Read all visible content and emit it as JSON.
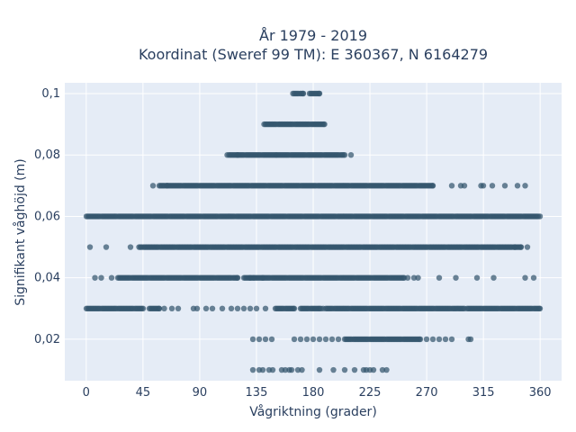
{
  "chart_data": {
    "type": "scatter",
    "title_line1": "År 1979 - 2019",
    "title_line2": "Koordinat (Sweref 99 TM): E 360367, N 6164279",
    "xlabel": "Vågriktning (grader)",
    "ylabel": "Signifikant våghöjd (m)",
    "xlim": [
      -17,
      377
    ],
    "ylim": [
      0.0065,
      0.1035
    ],
    "xticks": [
      0,
      45,
      90,
      135,
      180,
      225,
      270,
      315,
      360
    ],
    "xtick_labels": [
      "0",
      "45",
      "90",
      "135",
      "180",
      "225",
      "270",
      "315",
      "360"
    ],
    "yticks": [
      0.02,
      0.04,
      0.06,
      0.08,
      0.1
    ],
    "ytick_labels": [
      "0,02",
      "0,04",
      "0,06",
      "0,08",
      "0,1"
    ],
    "grid": true,
    "background": "#e5ecf6",
    "grid_color": "#ffffff",
    "marker_color": "#34566e",
    "series": [
      {
        "rows": [
          {
            "y": 0.1,
            "dense": [
              [
                164,
                172
              ],
              [
                177,
                185
              ]
            ],
            "points": []
          },
          {
            "y": 0.09,
            "dense": [
              [
                141,
                189
              ]
            ],
            "points": []
          },
          {
            "y": 0.08,
            "dense": [
              [
                112,
                151
              ],
              [
                151,
                205
              ]
            ],
            "points": [
              120,
              210
            ]
          },
          {
            "y": 0.07,
            "dense": [
              [
                58,
                275
              ]
            ],
            "points": [
              53,
              64,
              290,
              297,
              300,
              313,
              315,
              322,
              332,
              342,
              348
            ]
          },
          {
            "y": 0.06,
            "dense": [
              [
                0,
                360
              ]
            ],
            "points": []
          },
          {
            "y": 0.05,
            "dense": [
              [
                42,
                345
              ]
            ],
            "points": [
              3,
              16,
              35,
              340,
              350
            ]
          },
          {
            "y": 0.04,
            "dense": [
              [
                25,
                120
              ],
              [
                125,
                252
              ]
            ],
            "points": [
              7,
              12,
              20,
              130,
              133,
              140,
              255,
              260,
              263,
              280,
              293,
              310,
              323,
              348,
              355
            ]
          },
          {
            "y": 0.03,
            "dense": [
              [
                0,
                45
              ],
              [
                50,
                58
              ],
              [
                150,
                165
              ],
              [
                170,
                185
              ],
              [
                190,
                300
              ],
              [
                303,
                360
              ]
            ],
            "points": [
              62,
              68,
              73,
              85,
              88,
              95,
              100,
              108,
              115,
              120,
              125,
              130,
              135,
              142,
              186,
              188,
              302
            ]
          },
          {
            "y": 0.02,
            "dense": [
              [
                205,
                265
              ]
            ],
            "points": [
              132,
              137,
              142,
              147,
              165,
              170,
              175,
              180,
              185,
              190,
              195,
              200,
              270,
              275,
              280,
              285,
              290,
              303,
              305
            ]
          },
          {
            "y": 0.01,
            "dense": [],
            "points": [
              132,
              137,
              140,
              145,
              148,
              155,
              158,
              161,
              163,
              168,
              171,
              185,
              196,
              205,
              213,
              220,
              222,
              225,
              228,
              235,
              238
            ]
          }
        ]
      }
    ]
  }
}
